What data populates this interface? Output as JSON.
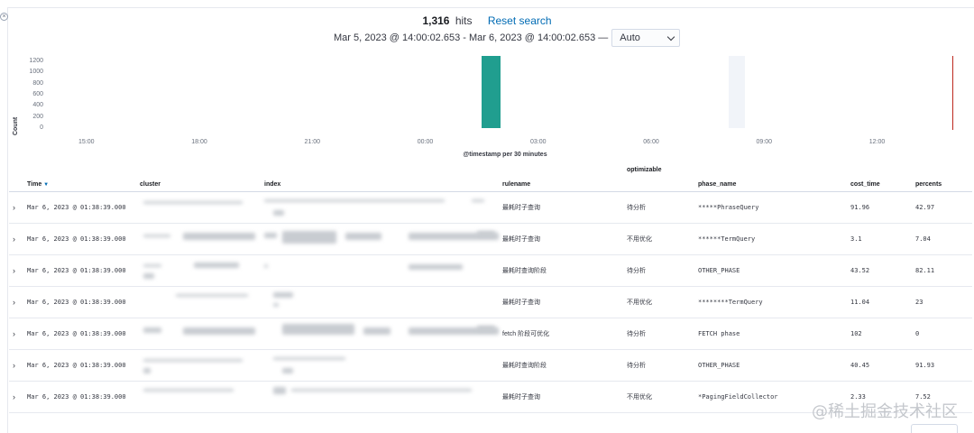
{
  "summary": {
    "hit_count": "1,316",
    "hits_label": "hits",
    "reset_label": "Reset search",
    "time_range": "Mar 5, 2023 @ 14:00:02.653 - Mar 6, 2023 @ 14:00:02.653 —",
    "interval_value": "Auto"
  },
  "chart_data": {
    "type": "bar",
    "ylabel": "Count",
    "xlabel": "@timestamp per 30 minutes",
    "yticks": [
      "1200",
      "1000",
      "800",
      "600",
      "400",
      "200",
      "0"
    ],
    "xticks": [
      "15:00",
      "18:00",
      "21:00",
      "00:00",
      "03:00",
      "06:00",
      "09:00",
      "12:00"
    ],
    "ylim": [
      0,
      1300
    ],
    "x_range_hours": [
      "Mar 5, 2023 @ 14:00",
      "Mar 6, 2023 @ 14:00"
    ],
    "bars": [
      {
        "x": "Mar 6, 2023 @ 01:30",
        "value": 1316,
        "color": "#209e8f"
      }
    ],
    "colors": {
      "bar": "#209e8f",
      "now_marker": "#bd271e"
    }
  },
  "table": {
    "headers": {
      "time": "Time",
      "cluster": "cluster",
      "index": "index",
      "rulename": "rulename",
      "optimizable": "optimizable",
      "phase_name": "phase_name",
      "cost_time": "cost_time",
      "percents": "percents"
    },
    "rows": [
      {
        "time": "Mar 6, 2023 @ 01:38:39.000",
        "rulename": "最耗时子查询",
        "optimizable": "待分析",
        "phase_name": "*****PhraseQuery",
        "cost_time": "91.96",
        "percents": "42.97"
      },
      {
        "time": "Mar 6, 2023 @ 01:38:39.000",
        "rulename": "最耗时子查询",
        "optimizable": "不用优化",
        "phase_name": "******TermQuery",
        "cost_time": "3.1",
        "percents": "7.04"
      },
      {
        "time": "Mar 6, 2023 @ 01:38:39.000",
        "rulename": "最耗时查询阶段",
        "optimizable": "待分析",
        "phase_name": "OTHER_PHASE",
        "cost_time": "43.52",
        "percents": "82.11"
      },
      {
        "time": "Mar 6, 2023 @ 01:38:39.000",
        "rulename": "最耗时子查询",
        "optimizable": "不用优化",
        "phase_name": "********TermQuery",
        "cost_time": "11.04",
        "percents": "23"
      },
      {
        "time": "Mar 6, 2023 @ 01:38:39.000",
        "rulename": "fetch 阶段可优化",
        "optimizable": "待分析",
        "phase_name": "FETCH phase",
        "cost_time": "102",
        "percents": "0"
      },
      {
        "time": "Mar 6, 2023 @ 01:38:39.000",
        "rulename": "最耗时查询阶段",
        "optimizable": "待分析",
        "phase_name": "OTHER_PHASE",
        "cost_time": "40.45",
        "percents": "91.93"
      },
      {
        "time": "Mar 6, 2023 @ 01:38:39.000",
        "rulename": "最耗时子查询",
        "optimizable": "不用优化",
        "phase_name": "*PagingFieldCollector",
        "cost_time": "2.33",
        "percents": "7.52"
      }
    ]
  },
  "watermark": "@稀土掘金技术社区"
}
